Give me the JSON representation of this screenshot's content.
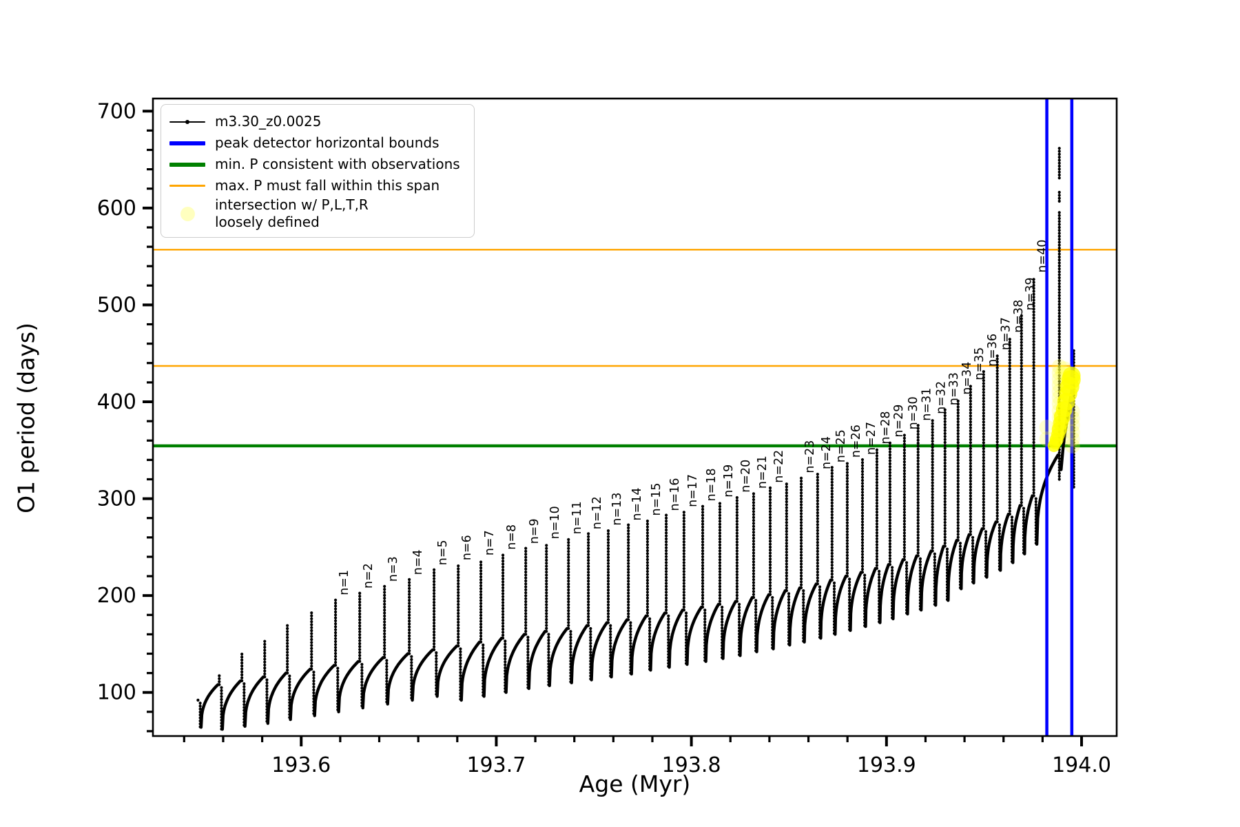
{
  "chart_data": {
    "type": "line",
    "title": "",
    "xlabel": "Age (Myr)",
    "ylabel": "O1 period (days)",
    "series_label": "m3.30_z0.0025",
    "xlim": [
      193.524,
      194.018
    ],
    "ylim": [
      55,
      713
    ],
    "xticks": [
      {
        "v": 193.6,
        "label": "193.6"
      },
      {
        "v": 193.7,
        "label": "193.7"
      },
      {
        "v": 193.8,
        "label": "193.8"
      },
      {
        "v": 193.9,
        "label": "193.9"
      },
      {
        "v": 194.0,
        "label": "194.0"
      }
    ],
    "yticks": [
      {
        "v": 100,
        "label": "100"
      },
      {
        "v": 200,
        "label": "200"
      },
      {
        "v": 300,
        "label": "300"
      },
      {
        "v": 400,
        "label": "400"
      },
      {
        "v": 500,
        "label": "500"
      },
      {
        "v": 600,
        "label": "600"
      },
      {
        "v": 700,
        "label": "700"
      }
    ],
    "minor_step_x": 0.02,
    "minor_step_y": 20,
    "grid": false,
    "legend_position": "upper left",
    "colors": {
      "series": "#000000",
      "peak_bounds": "#0000ff",
      "min_p": "#008000",
      "max_p": "#ffa500",
      "intersection_strong": "rgba(255,255,0,0.8)",
      "intersection_faint": "rgba(255,255,60,0.25)"
    },
    "hlines": [
      {
        "y": 557,
        "color_key": "max_p",
        "lw": 2.4
      },
      {
        "y": 437,
        "color_key": "max_p",
        "lw": 2.4
      },
      {
        "y": 354.5,
        "color_key": "min_p",
        "lw": 4.4
      }
    ],
    "vlines": [
      {
        "x": 193.9822,
        "color_key": "peak_bounds",
        "lw": 4.5
      },
      {
        "x": 193.995,
        "color_key": "peak_bounds",
        "lw": 4.5
      }
    ],
    "pulse_columns": [
      "n",
      "t",
      "peak",
      "base",
      "dip"
    ],
    "pulses": [
      [
        null,
        193.5471,
        95,
        92,
        64
      ],
      [
        null,
        193.558,
        120,
        108,
        62
      ],
      [
        null,
        193.5696,
        140,
        112,
        65
      ],
      [
        null,
        193.5813,
        155,
        116,
        68
      ],
      [
        null,
        193.5929,
        170,
        120,
        72
      ],
      [
        null,
        193.6053,
        183,
        124,
        76
      ],
      [
        1,
        193.6176,
        196,
        128,
        80
      ],
      [
        2,
        193.63,
        203,
        132,
        84
      ],
      [
        3,
        193.6427,
        210,
        136,
        88
      ],
      [
        4,
        193.6554,
        217,
        140,
        92
      ],
      [
        5,
        193.6681,
        227,
        144,
        96
      ],
      [
        6,
        193.6805,
        232,
        148,
        92
      ],
      [
        7,
        193.6921,
        237,
        152,
        96
      ],
      [
        8,
        193.7034,
        243,
        156,
        100
      ],
      [
        9,
        193.7151,
        249,
        160,
        104
      ],
      [
        10,
        193.7257,
        254,
        163,
        107
      ],
      [
        11,
        193.737,
        259,
        166,
        110
      ],
      [
        12,
        193.7472,
        264,
        169,
        113
      ],
      [
        13,
        193.7574,
        268,
        172,
        116
      ],
      [
        14,
        193.7677,
        273,
        175,
        119
      ],
      [
        15,
        193.7775,
        278,
        179,
        123
      ],
      [
        16,
        193.7871,
        283,
        182,
        126
      ],
      [
        17,
        193.7962,
        287,
        185,
        129
      ],
      [
        18,
        193.8058,
        293,
        188,
        132
      ],
      [
        19,
        193.8146,
        297,
        191,
        135
      ],
      [
        20,
        193.8234,
        302,
        194,
        138
      ],
      [
        21,
        193.8319,
        306,
        198,
        142
      ],
      [
        22,
        193.8404,
        312,
        201,
        145
      ],
      [
        null,
        193.8488,
        316,
        205,
        149
      ],
      [
        23,
        193.8563,
        322,
        208,
        152
      ],
      [
        24,
        193.8647,
        326,
        212,
        156
      ],
      [
        25,
        193.8721,
        333,
        216,
        160
      ],
      [
        26,
        193.8799,
        338,
        220,
        164
      ],
      [
        27,
        193.8877,
        341,
        224,
        168
      ],
      [
        28,
        193.8951,
        352,
        228,
        172
      ],
      [
        29,
        193.9018,
        359,
        232,
        176
      ],
      [
        30,
        193.9092,
        367,
        237,
        181
      ],
      [
        31,
        193.9162,
        376,
        241,
        185
      ],
      [
        32,
        193.9236,
        383,
        246,
        190
      ],
      [
        33,
        193.93,
        392,
        251,
        195
      ],
      [
        34,
        193.9367,
        403,
        257,
        207
      ],
      [
        35,
        193.9431,
        418,
        263,
        213
      ],
      [
        36,
        193.9498,
        432,
        269,
        219
      ],
      [
        37,
        193.9568,
        449,
        276,
        226
      ],
      [
        38,
        193.9632,
        467,
        284,
        234
      ],
      [
        39,
        193.9692,
        490,
        293,
        243
      ],
      [
        40,
        193.9755,
        529,
        303,
        253
      ]
    ],
    "final_pulse": {
      "t": 193.9886,
      "base": 345,
      "segments": [
        [
          320,
          598
        ],
        [
          607,
          618
        ],
        [
          631,
          663
        ]
      ]
    },
    "post_curve": [
      [
        193.9895,
        330
      ],
      [
        193.9905,
        352
      ],
      [
        193.9915,
        368
      ],
      [
        193.9925,
        381
      ],
      [
        193.9935,
        393
      ],
      [
        193.9942,
        402
      ],
      [
        193.995,
        411
      ],
      [
        193.9958,
        418
      ]
    ],
    "post_column": {
      "t": 193.996,
      "lo": 312,
      "hi": 455
    },
    "yellow": {
      "faint_r": 11,
      "faint": [
        [
          193.9822,
          373.7
        ],
        [
          193.9822,
          361.6
        ],
        [
          193.9886,
          436.3
        ],
        [
          193.9886,
          429.9
        ],
        [
          193.9886,
          423.5
        ],
        [
          193.9886,
          417.1
        ],
        [
          193.9886,
          410.7
        ],
        [
          193.9886,
          404.3
        ],
        [
          193.9886,
          397.9
        ],
        [
          193.9886,
          390.8
        ],
        [
          193.9886,
          383.7
        ],
        [
          193.9886,
          376.6
        ],
        [
          193.9886,
          369.4
        ],
        [
          193.9953,
          390.1
        ],
        [
          193.9953,
          383.0
        ],
        [
          193.9953,
          375.9
        ],
        [
          193.9953,
          368.8
        ],
        [
          193.9953,
          361.6
        ],
        [
          193.9953,
          354.5
        ],
        [
          193.9904,
          430.0
        ],
        [
          193.9911,
          434.0
        ]
      ],
      "strong": [
        [
          193.9858,
          354.5,
          9
        ],
        [
          193.9865,
          357.4,
          9
        ],
        [
          193.9872,
          360.9,
          10
        ],
        [
          193.9879,
          365.9,
          10
        ],
        [
          193.9886,
          371.6,
          11
        ],
        [
          193.9893,
          378.0,
          11
        ],
        [
          193.99,
          384.4,
          12
        ],
        [
          193.9911,
          392.2,
          12
        ],
        [
          193.9921,
          400.0,
          13
        ],
        [
          193.9932,
          408.5,
          13
        ],
        [
          193.9939,
          415.7,
          14
        ],
        [
          193.9946,
          422.8,
          14
        ],
        [
          193.9949,
          427.0,
          13
        ]
      ]
    },
    "legend": {
      "items": [
        {
          "label": "m3.30_z0.0025",
          "swatch": "line-dot",
          "color": "#000000",
          "lw": 2
        },
        {
          "label": "peak detector horizontal bounds",
          "swatch": "line",
          "color": "#0000ff",
          "lw": 6
        },
        {
          "label": "min. P consistent with observations",
          "swatch": "line",
          "color": "#008000",
          "lw": 6
        },
        {
          "label": "max. P must fall within this span",
          "swatch": "line",
          "color": "#ffa500",
          "lw": 3
        },
        {
          "label": "intersection w/ P,L,T,R\nloosely defined",
          "swatch": "circle",
          "color": "rgba(255,255,0,0.25)",
          "lw": 0
        }
      ]
    }
  }
}
